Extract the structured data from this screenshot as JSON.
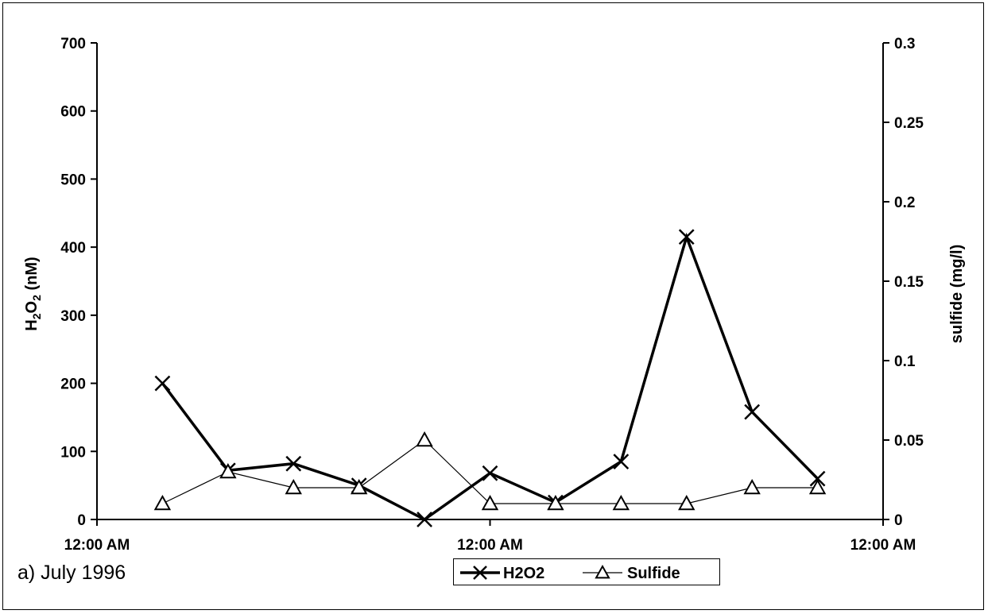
{
  "chart_data": {
    "type": "line",
    "panel_label": "a) July 1996",
    "x_tick_labels": [
      "12:00 AM",
      "12:00 AM",
      "12:00 AM"
    ],
    "y_left": {
      "label_parts": {
        "base": "H",
        "sub": "2",
        "base2": "O",
        "sub2": "2",
        "unit": " (nM)"
      },
      "ylim": [
        0,
        700
      ],
      "ticks": [
        "0",
        "100",
        "200",
        "300",
        "400",
        "500",
        "600",
        "700"
      ]
    },
    "y_right": {
      "label": "sulfide (mg/l)",
      "ylim": [
        0,
        0.3
      ],
      "ticks": [
        "0",
        "0.05",
        "0.1",
        "0.15",
        "0.2",
        "0.25",
        "0.3"
      ]
    },
    "x_range_slots": 12,
    "series": [
      {
        "name": "H2O2",
        "axis": "left",
        "marker": "x",
        "color": "#000000",
        "x": [
          1,
          2,
          3,
          4,
          5,
          6,
          7,
          8,
          9,
          10,
          11
        ],
        "values": [
          200,
          72,
          82,
          50,
          0,
          68,
          25,
          85,
          415,
          158,
          60
        ]
      },
      {
        "name": "Sulfide",
        "axis": "right",
        "marker": "triangle",
        "color": "#000000",
        "x": [
          1,
          2,
          3,
          4,
          5,
          6,
          7,
          8,
          9,
          10,
          11
        ],
        "values": [
          0.01,
          0.03,
          0.02,
          0.02,
          0.05,
          0.01,
          0.01,
          0.01,
          0.01,
          0.02,
          0.02
        ]
      }
    ],
    "grid": false,
    "legend_position": "bottom"
  }
}
